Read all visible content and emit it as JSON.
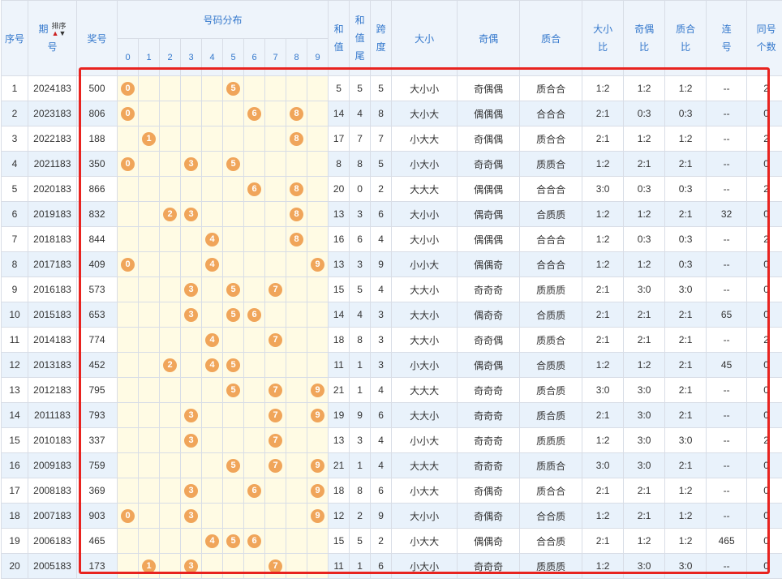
{
  "headers": {
    "seq": "序号",
    "issue_a": "期",
    "issue_b": "号",
    "sort_label": "排序",
    "prize": "奖号",
    "distribution": "号码分布",
    "digits": [
      "0",
      "1",
      "2",
      "3",
      "4",
      "5",
      "6",
      "7",
      "8",
      "9"
    ],
    "sum_a": "和",
    "sum_b": "值",
    "sumtail_a": "和",
    "sumtail_b": "值",
    "sumtail_c": "尾",
    "span_a": "跨",
    "span_b": "度",
    "size": "大小",
    "parity": "奇偶",
    "prime": "质合",
    "size_ratio_a": "大小",
    "size_ratio_b": "比",
    "parity_ratio_a": "奇偶",
    "parity_ratio_b": "比",
    "prime_ratio_a": "质合",
    "prime_ratio_b": "比",
    "consec_a": "连",
    "consec_b": "号",
    "same_a": "同号",
    "same_b": "个数"
  },
  "rows": [
    {
      "seq": "1",
      "issue": "2024183",
      "prize": "500",
      "balls": [
        "0",
        "5"
      ],
      "sum": "5",
      "tail": "5",
      "span": "5",
      "size": "大小小",
      "parity": "奇偶偶",
      "prime": "质合合",
      "sr": "1:2",
      "pr": "1:2",
      "qr": "1:2",
      "consec": "--",
      "same": "2"
    },
    {
      "seq": "2",
      "issue": "2023183",
      "prize": "806",
      "balls": [
        "0",
        "6",
        "8"
      ],
      "sum": "14",
      "tail": "4",
      "span": "8",
      "size": "大小大",
      "parity": "偶偶偶",
      "prime": "合合合",
      "sr": "2:1",
      "pr": "0:3",
      "qr": "0:3",
      "consec": "--",
      "same": "0"
    },
    {
      "seq": "3",
      "issue": "2022183",
      "prize": "188",
      "balls": [
        "1",
        "8"
      ],
      "sum": "17",
      "tail": "7",
      "span": "7",
      "size": "小大大",
      "parity": "奇偶偶",
      "prime": "质合合",
      "sr": "2:1",
      "pr": "1:2",
      "qr": "1:2",
      "consec": "--",
      "same": "2"
    },
    {
      "seq": "4",
      "issue": "2021183",
      "prize": "350",
      "balls": [
        "0",
        "3",
        "5"
      ],
      "sum": "8",
      "tail": "8",
      "span": "5",
      "size": "小大小",
      "parity": "奇奇偶",
      "prime": "质质合",
      "sr": "1:2",
      "pr": "2:1",
      "qr": "2:1",
      "consec": "--",
      "same": "0"
    },
    {
      "seq": "5",
      "issue": "2020183",
      "prize": "866",
      "balls": [
        "6",
        "8"
      ],
      "sum": "20",
      "tail": "0",
      "span": "2",
      "size": "大大大",
      "parity": "偶偶偶",
      "prime": "合合合",
      "sr": "3:0",
      "pr": "0:3",
      "qr": "0:3",
      "consec": "--",
      "same": "2"
    },
    {
      "seq": "6",
      "issue": "2019183",
      "prize": "832",
      "balls": [
        "2",
        "3",
        "8"
      ],
      "sum": "13",
      "tail": "3",
      "span": "6",
      "size": "大小小",
      "parity": "偶奇偶",
      "prime": "合质质",
      "sr": "1:2",
      "pr": "1:2",
      "qr": "2:1",
      "consec": "32",
      "same": "0"
    },
    {
      "seq": "7",
      "issue": "2018183",
      "prize": "844",
      "balls": [
        "4",
        "8"
      ],
      "sum": "16",
      "tail": "6",
      "span": "4",
      "size": "大小小",
      "parity": "偶偶偶",
      "prime": "合合合",
      "sr": "1:2",
      "pr": "0:3",
      "qr": "0:3",
      "consec": "--",
      "same": "2"
    },
    {
      "seq": "8",
      "issue": "2017183",
      "prize": "409",
      "balls": [
        "0",
        "4",
        "9"
      ],
      "sum": "13",
      "tail": "3",
      "span": "9",
      "size": "小小大",
      "parity": "偶偶奇",
      "prime": "合合合",
      "sr": "1:2",
      "pr": "1:2",
      "qr": "0:3",
      "consec": "--",
      "same": "0"
    },
    {
      "seq": "9",
      "issue": "2016183",
      "prize": "573",
      "balls": [
        "3",
        "5",
        "7"
      ],
      "sum": "15",
      "tail": "5",
      "span": "4",
      "size": "大大小",
      "parity": "奇奇奇",
      "prime": "质质质",
      "sr": "2:1",
      "pr": "3:0",
      "qr": "3:0",
      "consec": "--",
      "same": "0"
    },
    {
      "seq": "10",
      "issue": "2015183",
      "prize": "653",
      "balls": [
        "3",
        "5",
        "6"
      ],
      "sum": "14",
      "tail": "4",
      "span": "3",
      "size": "大大小",
      "parity": "偶奇奇",
      "prime": "合质质",
      "sr": "2:1",
      "pr": "2:1",
      "qr": "2:1",
      "consec": "65",
      "same": "0"
    },
    {
      "seq": "11",
      "issue": "2014183",
      "prize": "774",
      "balls": [
        "4",
        "7"
      ],
      "sum": "18",
      "tail": "8",
      "span": "3",
      "size": "大大小",
      "parity": "奇奇偶",
      "prime": "质质合",
      "sr": "2:1",
      "pr": "2:1",
      "qr": "2:1",
      "consec": "--",
      "same": "2"
    },
    {
      "seq": "12",
      "issue": "2013183",
      "prize": "452",
      "balls": [
        "2",
        "4",
        "5"
      ],
      "sum": "11",
      "tail": "1",
      "span": "3",
      "size": "小大小",
      "parity": "偶奇偶",
      "prime": "合质质",
      "sr": "1:2",
      "pr": "1:2",
      "qr": "2:1",
      "consec": "45",
      "same": "0"
    },
    {
      "seq": "13",
      "issue": "2012183",
      "prize": "795",
      "balls": [
        "5",
        "7",
        "9"
      ],
      "sum": "21",
      "tail": "1",
      "span": "4",
      "size": "大大大",
      "parity": "奇奇奇",
      "prime": "质合质",
      "sr": "3:0",
      "pr": "3:0",
      "qr": "2:1",
      "consec": "--",
      "same": "0"
    },
    {
      "seq": "14",
      "issue": "2011183",
      "prize": "793",
      "balls": [
        "3",
        "7",
        "9"
      ],
      "sum": "19",
      "tail": "9",
      "span": "6",
      "size": "大大小",
      "parity": "奇奇奇",
      "prime": "质合质",
      "sr": "2:1",
      "pr": "3:0",
      "qr": "2:1",
      "consec": "--",
      "same": "0"
    },
    {
      "seq": "15",
      "issue": "2010183",
      "prize": "337",
      "balls": [
        "3",
        "7"
      ],
      "sum": "13",
      "tail": "3",
      "span": "4",
      "size": "小小大",
      "parity": "奇奇奇",
      "prime": "质质质",
      "sr": "1:2",
      "pr": "3:0",
      "qr": "3:0",
      "consec": "--",
      "same": "2"
    },
    {
      "seq": "16",
      "issue": "2009183",
      "prize": "759",
      "balls": [
        "5",
        "7",
        "9"
      ],
      "sum": "21",
      "tail": "1",
      "span": "4",
      "size": "大大大",
      "parity": "奇奇奇",
      "prime": "质质合",
      "sr": "3:0",
      "pr": "3:0",
      "qr": "2:1",
      "consec": "--",
      "same": "0"
    },
    {
      "seq": "17",
      "issue": "2008183",
      "prize": "369",
      "balls": [
        "3",
        "6",
        "9"
      ],
      "sum": "18",
      "tail": "8",
      "span": "6",
      "size": "小大大",
      "parity": "奇偶奇",
      "prime": "质合合",
      "sr": "2:1",
      "pr": "2:1",
      "qr": "1:2",
      "consec": "--",
      "same": "0"
    },
    {
      "seq": "18",
      "issue": "2007183",
      "prize": "903",
      "balls": [
        "0",
        "3",
        "9"
      ],
      "sum": "12",
      "tail": "2",
      "span": "9",
      "size": "大小小",
      "parity": "奇偶奇",
      "prime": "合合质",
      "sr": "1:2",
      "pr": "2:1",
      "qr": "1:2",
      "consec": "--",
      "same": "0"
    },
    {
      "seq": "19",
      "issue": "2006183",
      "prize": "465",
      "balls": [
        "4",
        "5",
        "6"
      ],
      "sum": "15",
      "tail": "5",
      "span": "2",
      "size": "小大大",
      "parity": "偶偶奇",
      "prime": "合合质",
      "sr": "2:1",
      "pr": "1:2",
      "qr": "1:2",
      "consec": "465",
      "same": "0"
    },
    {
      "seq": "20",
      "issue": "2005183",
      "prize": "173",
      "balls": [
        "1",
        "3",
        "7"
      ],
      "sum": "11",
      "tail": "1",
      "span": "6",
      "size": "小大小",
      "parity": "奇奇奇",
      "prime": "质质质",
      "sr": "1:2",
      "pr": "3:0",
      "qr": "3:0",
      "consec": "--",
      "same": "0"
    }
  ],
  "colors": {
    "ball": "#f0a55a",
    "header_text": "#3377cc",
    "highlight_box": "#e8231f",
    "row_alt": "#e9f2fb",
    "dist_bg": "#fffbe4"
  }
}
